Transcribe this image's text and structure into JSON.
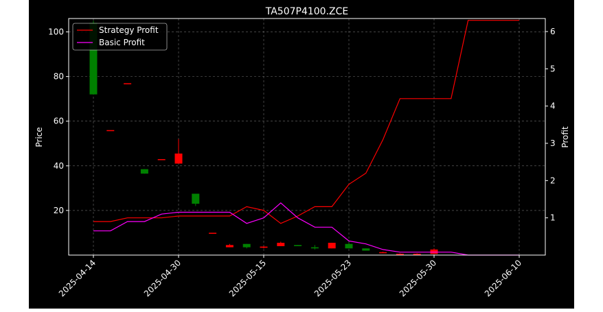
{
  "chart_data": {
    "type": "candlestick+line",
    "title": "TA507P4100.ZCE",
    "xlabel": "",
    "ylabel_left": "Price",
    "ylabel_right": "Profit",
    "grid": true,
    "legend_position": "top-left",
    "colors": {
      "background": "#000000",
      "up_candle": "#ff0000",
      "down_candle": "#008000",
      "strategy_line": "#ff0000",
      "basic_line": "#ff00ff",
      "axes": "#ffffff",
      "grid": "#8a8a8a"
    },
    "x_ticks": [
      "2025-04-14",
      "2025-04-30",
      "2025-05-15",
      "2025-05-23",
      "2025-05-30",
      "2025-06-10"
    ],
    "y_left": {
      "range": [
        0,
        106
      ],
      "ticks": [
        20,
        40,
        60,
        80,
        100
      ]
    },
    "y_right": {
      "range": [
        0,
        6.35
      ],
      "ticks": [
        1,
        2,
        3,
        4,
        5,
        6
      ]
    },
    "candles": [
      {
        "i": 0,
        "open": 104,
        "high": 105,
        "low": 72,
        "close": 72
      },
      {
        "i": 1,
        "open": 56,
        "high": 56,
        "low": 56,
        "close": 56
      },
      {
        "i": 2,
        "open": 77,
        "high": 77,
        "low": 77,
        "close": 77
      },
      {
        "i": 3,
        "open": 38.5,
        "high": 38.5,
        "low": 36.5,
        "close": 36.5
      },
      {
        "i": 4,
        "open": 43,
        "high": 43,
        "low": 43,
        "close": 43
      },
      {
        "i": 5,
        "open": 41,
        "high": 52,
        "low": 41,
        "close": 45.5
      },
      {
        "i": 6,
        "open": 27.5,
        "high": 27.5,
        "low": 22,
        "close": 23
      },
      {
        "i": 7,
        "open": 10,
        "high": 10,
        "low": 10,
        "close": 10
      },
      {
        "i": 8,
        "open": 3.5,
        "high": 5,
        "low": 3.5,
        "close": 4.5
      },
      {
        "i": 9,
        "open": 5,
        "high": 5,
        "low": 3,
        "close": 3.5
      },
      {
        "i": 10,
        "open": 3.3,
        "high": 4,
        "low": 3,
        "close": 3.8
      },
      {
        "i": 11,
        "open": 4,
        "high": 6,
        "low": 4,
        "close": 5.5
      },
      {
        "i": 12,
        "open": 4.5,
        "high": 4.5,
        "low": 4,
        "close": 4
      },
      {
        "i": 13,
        "open": 3.5,
        "high": 4.5,
        "low": 2.5,
        "close": 3
      },
      {
        "i": 14,
        "open": 3,
        "high": 5.5,
        "low": 3,
        "close": 5.5
      },
      {
        "i": 15,
        "open": 5,
        "high": 5.5,
        "low": 3,
        "close": 3
      },
      {
        "i": 16,
        "open": 3,
        "high": 3,
        "low": 2,
        "close": 2
      },
      {
        "i": 17,
        "open": 1,
        "high": 1.5,
        "low": 1,
        "close": 1.3
      },
      {
        "i": 18,
        "open": 0.5,
        "high": 0.8,
        "low": 0.5,
        "close": 0.6
      },
      {
        "i": 19,
        "open": 0.5,
        "high": 0.8,
        "low": 0.5,
        "close": 0.6
      },
      {
        "i": 20,
        "open": 0.5,
        "high": 3,
        "low": 0.5,
        "close": 2.5
      }
    ],
    "series": [
      {
        "name": "Strategy Profit",
        "color": "#ff0000",
        "x": [
          0,
          1,
          2,
          3,
          4,
          5,
          6,
          7,
          8,
          9,
          10,
          11,
          12,
          13,
          14,
          15,
          16,
          17,
          18,
          19,
          20,
          21,
          22,
          23,
          24,
          25
        ],
        "y": [
          0.9,
          0.9,
          1.0,
          1.0,
          1.0,
          1.05,
          1.05,
          1.05,
          1.05,
          1.3,
          1.2,
          0.85,
          1.05,
          1.3,
          1.3,
          1.9,
          2.2,
          3.1,
          4.2,
          4.2,
          4.2,
          4.2,
          6.3,
          6.3,
          6.3,
          6.3
        ]
      },
      {
        "name": "Basic Profit",
        "color": "#ff00ff",
        "x": [
          0,
          1,
          2,
          3,
          4,
          5,
          6,
          7,
          8,
          9,
          10,
          11,
          12,
          13,
          14,
          15,
          16,
          17,
          18,
          19,
          20,
          21,
          22,
          23,
          24,
          25
        ],
        "y": [
          0.65,
          0.65,
          0.9,
          0.9,
          1.1,
          1.15,
          1.15,
          1.15,
          1.15,
          0.85,
          1.0,
          1.4,
          1.0,
          0.75,
          0.75,
          0.38,
          0.3,
          0.15,
          0.08,
          0.08,
          0.08,
          0.08,
          0.0,
          0.0,
          0.0,
          0.0
        ]
      }
    ],
    "x_count": 26
  }
}
